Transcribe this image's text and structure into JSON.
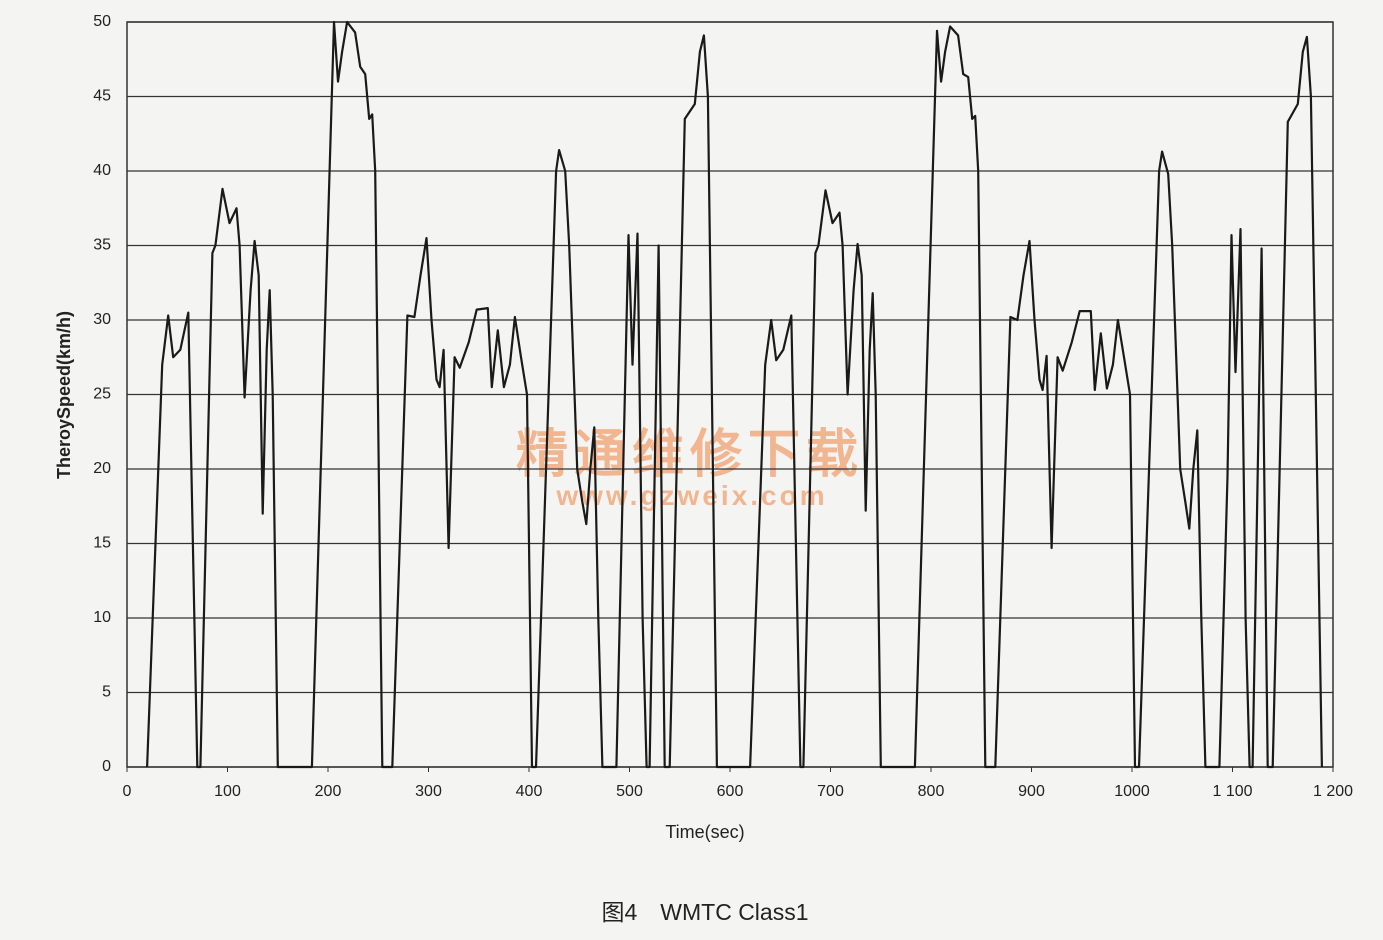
{
  "chart_data": {
    "type": "line",
    "caption": "图4　WMTC Class1",
    "xlabel": "Time(sec)",
    "ylabel": "TheroySpeed(km/h)",
    "watermark": [
      "精通维修下载",
      "www.gzweix.com"
    ],
    "xlim": [
      0,
      1200
    ],
    "xticks": [
      0,
      100,
      200,
      300,
      400,
      500,
      600,
      700,
      800,
      900,
      1000,
      {
        "value": 1100,
        "label": "1 100"
      },
      {
        "value": 1200,
        "label": "1 200"
      }
    ],
    "ylim": [
      0,
      50
    ],
    "yticks": [
      0,
      5,
      10,
      15,
      20,
      25,
      30,
      35,
      40,
      45,
      50
    ],
    "grid": true,
    "color": "#1a1a1a",
    "x": [
      20,
      35,
      41,
      46,
      53,
      61,
      70,
      73,
      85,
      88,
      95,
      102,
      109,
      112,
      117,
      123,
      127,
      131,
      135,
      139,
      142,
      145,
      150,
      184,
      206,
      210,
      214,
      219,
      227,
      232,
      237,
      241,
      244,
      247,
      254,
      264,
      279,
      286,
      292,
      298,
      303,
      308,
      311,
      315,
      320,
      326,
      331,
      340,
      348,
      359,
      363,
      369,
      375,
      381,
      386,
      392,
      398,
      403,
      407,
      427,
      430,
      436,
      440,
      448,
      453,
      457,
      461,
      465,
      469,
      473,
      487,
      499,
      503,
      508,
      513,
      517,
      520,
      529,
      535,
      540,
      555,
      565,
      570,
      574,
      578,
      587,
      620,
      635,
      641,
      646,
      653,
      661,
      670,
      673,
      685,
      688,
      695,
      702,
      709,
      712,
      717,
      723,
      727,
      731,
      735,
      739,
      742,
      745,
      750,
      784,
      806,
      810,
      814,
      819,
      827,
      832,
      837,
      841,
      844,
      847,
      854,
      864,
      879,
      886,
      892,
      898,
      903,
      908,
      911,
      915,
      920,
      926,
      931,
      940,
      948,
      959,
      963,
      969,
      975,
      981,
      986,
      992,
      998,
      1003,
      1007,
      1027,
      1030,
      1036,
      1040,
      1048,
      1053,
      1057,
      1061,
      1065,
      1069,
      1073,
      1087,
      1095,
      1099,
      1103,
      1108,
      1113,
      1117,
      1120,
      1129,
      1135,
      1140,
      1155,
      1165,
      1170,
      1174,
      1178,
      1189
    ],
    "values": [
      0,
      27,
      30.3,
      27.5,
      28,
      30.5,
      0,
      0,
      34.5,
      35,
      38.8,
      36.5,
      37.5,
      35,
      24.8,
      32,
      35.3,
      33,
      17,
      28,
      32,
      25,
      0,
      0,
      50,
      46,
      48,
      50,
      49.3,
      47,
      46.5,
      43.5,
      43.8,
      40,
      0,
      0,
      30.3,
      30.2,
      33,
      35.5,
      30,
      26,
      25.5,
      28,
      14.7,
      27.5,
      26.8,
      28.5,
      30.7,
      30.8,
      25.5,
      29.3,
      25.5,
      27,
      30.2,
      27.5,
      25,
      0,
      0,
      40,
      41.4,
      40,
      35,
      20,
      17.8,
      16.3,
      20,
      22.8,
      10,
      0,
      0,
      35.7,
      27,
      35.8,
      10,
      0,
      0,
      35,
      0,
      0,
      43.5,
      44.5,
      48,
      49.1,
      45,
      0,
      0,
      27,
      30,
      27.3,
      28,
      30.3,
      0,
      0,
      34.5,
      35,
      38.7,
      36.5,
      37.2,
      35,
      25,
      32,
      35.1,
      33,
      17.2,
      28,
      31.8,
      25,
      0,
      0,
      49.4,
      46,
      48,
      49.7,
      49.1,
      46.5,
      46.3,
      43.5,
      43.7,
      40,
      0,
      0,
      30.2,
      30,
      33,
      35.3,
      30,
      26,
      25.3,
      27.6,
      14.7,
      27.5,
      26.6,
      28.5,
      30.6,
      30.6,
      25.3,
      29.1,
      25.4,
      27,
      30,
      27.5,
      25,
      0,
      0,
      40,
      41.3,
      39.8,
      35,
      20,
      17.8,
      16,
      20,
      22.6,
      10,
      0,
      0,
      19.5,
      35.7,
      26.5,
      36.1,
      10,
      0,
      0,
      34.8,
      0,
      0,
      43.3,
      44.5,
      48,
      49,
      45,
      0
    ]
  }
}
